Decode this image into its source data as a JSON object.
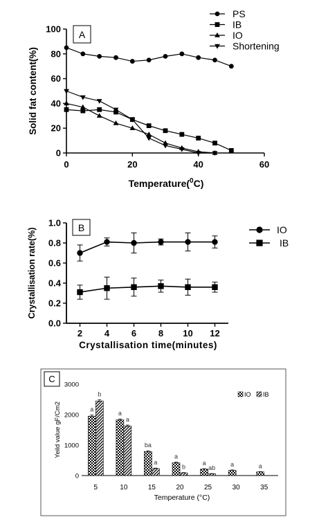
{
  "chart_data": [
    {
      "type": "line",
      "panel_label": "A",
      "xlabel": "Temperature(",
      "xlabel_sup": "0",
      "xlabel_suffix": "C)",
      "ylabel": "Solid fat content(%)",
      "xlim": [
        0,
        60
      ],
      "ylim": [
        0,
        100
      ],
      "x_ticks": [
        "0",
        "20",
        "40",
        "60"
      ],
      "y_ticks": [
        "0",
        "20",
        "40",
        "60",
        "80",
        "100"
      ],
      "legend_position": "top-right",
      "series": [
        {
          "name": "PS",
          "marker": "circle",
          "x": [
            0,
            5,
            10,
            15,
            20,
            25,
            30,
            35,
            40,
            45,
            50
          ],
          "y": [
            85,
            80,
            78,
            77,
            74,
            75,
            78,
            80,
            77,
            75,
            70
          ]
        },
        {
          "name": "IB",
          "marker": "square",
          "x": [
            0,
            5,
            10,
            15,
            20,
            25,
            30,
            35,
            40,
            45,
            50
          ],
          "y": [
            35,
            34,
            35,
            33,
            27,
            22,
            18,
            15,
            12,
            8,
            2
          ]
        },
        {
          "name": "IO",
          "marker": "triangle-up",
          "x": [
            0,
            5,
            10,
            15,
            20,
            25,
            30,
            35,
            40,
            45
          ],
          "y": [
            40,
            37,
            30,
            24,
            20,
            15,
            8,
            4,
            1,
            0
          ]
        },
        {
          "name": "Shortening",
          "marker": "triangle-down",
          "x": [
            0,
            5,
            10,
            15,
            20,
            25,
            30,
            35,
            40,
            45
          ],
          "y": [
            50,
            45,
            42,
            35,
            27,
            12,
            6,
            3,
            0,
            0
          ]
        }
      ]
    },
    {
      "type": "line",
      "panel_label": "B",
      "xlabel": "Crystallisation time(minutes)",
      "ylabel": "Crystallisation rate(%)",
      "xlim": [
        1,
        13
      ],
      "ylim": [
        0,
        1.0
      ],
      "x_ticks": [
        "2",
        "4",
        "6",
        "8",
        "10",
        "12"
      ],
      "y_ticks": [
        "0.0",
        "0.2",
        "0.4",
        "0.6",
        "0.8",
        "1.0"
      ],
      "legend_position": "right",
      "series": [
        {
          "name": "IO",
          "marker": "circle",
          "x": [
            2,
            4,
            6,
            8,
            10,
            12
          ],
          "y": [
            0.7,
            0.81,
            0.8,
            0.81,
            0.81,
            0.81
          ],
          "error": [
            0.08,
            0.04,
            0.1,
            0.03,
            0.09,
            0.06
          ]
        },
        {
          "name": "IB",
          "marker": "square",
          "x": [
            2,
            4,
            6,
            8,
            10,
            12
          ],
          "y": [
            0.31,
            0.35,
            0.36,
            0.37,
            0.36,
            0.36
          ],
          "error": [
            0.07,
            0.11,
            0.09,
            0.06,
            0.08,
            0.05
          ]
        }
      ]
    },
    {
      "type": "bar",
      "panel_label": "C",
      "xlabel": "Temperature (°C)",
      "ylabel": "Yeild value gF/Cm2",
      "ylim": [
        0,
        3000
      ],
      "y_ticks": [
        "0",
        "1000",
        "2000",
        "3000"
      ],
      "categories": [
        "5",
        "10",
        "15",
        "20",
        "25",
        "30",
        "35"
      ],
      "legend_position": "top-right",
      "series": [
        {
          "name": "IO",
          "pattern": "checker",
          "values": [
            1950,
            1830,
            790,
            420,
            210,
            170,
            120
          ],
          "error": [
            40,
            30,
            25,
            20,
            15,
            15,
            10
          ],
          "letters": [
            "a",
            "a",
            "ba",
            "a",
            "a",
            "a",
            "a"
          ]
        },
        {
          "name": "IB",
          "pattern": "diagonal",
          "values": [
            2450,
            1630,
            230,
            90,
            60,
            0,
            0
          ],
          "error": [
            40,
            30,
            15,
            10,
            8,
            0,
            0
          ],
          "letters": [
            "b",
            "a",
            "a",
            "b",
            "ab",
            "",
            ""
          ]
        }
      ]
    }
  ]
}
